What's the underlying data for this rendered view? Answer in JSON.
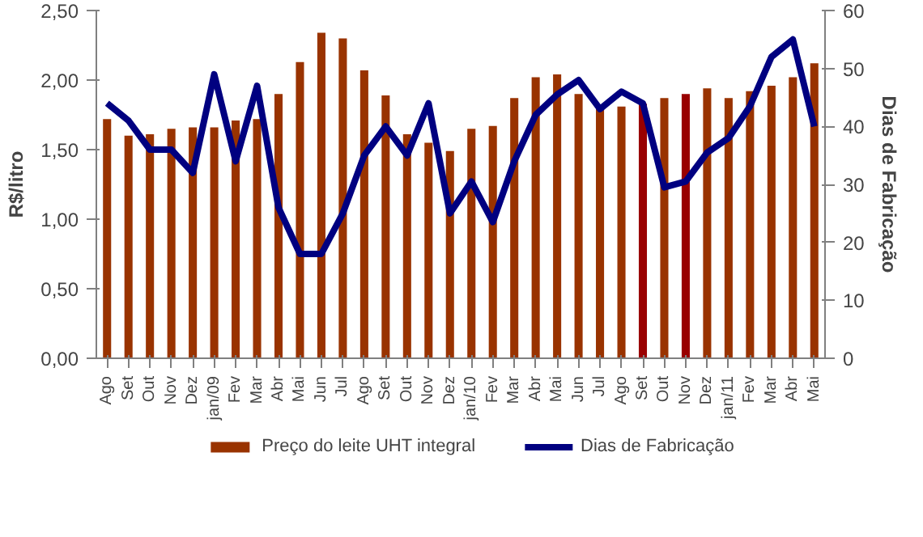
{
  "chart_data": {
    "type": "bar",
    "ylabel": "R$/litro",
    "y2label": "Dias de Fabricação",
    "categories": [
      "Ago",
      "Set",
      "Out",
      "Nov",
      "Dez",
      "jan/09",
      "Fev",
      "Mar",
      "Abr",
      "Mai",
      "Jun",
      "Jul",
      "Ago",
      "Set",
      "Out",
      "Nov",
      "Dez",
      "jan/10",
      "Fev",
      "Mar",
      "Abr",
      "Mai",
      "Jun",
      "Jul",
      "Ago",
      "Set",
      "Out",
      "Nov",
      "Dez",
      "jan/11",
      "Fev",
      "Mar",
      "Abr",
      "Mai"
    ],
    "series": [
      {
        "name": "Preço do leite UHT integral",
        "color": "#993300",
        "colors": [
          null,
          null,
          null,
          null,
          null,
          null,
          null,
          null,
          null,
          null,
          null,
          null,
          null,
          null,
          null,
          null,
          null,
          null,
          null,
          null,
          null,
          null,
          null,
          null,
          null,
          "#990000",
          null,
          "#990000",
          null,
          null,
          null,
          null,
          null,
          null
        ],
        "values": [
          1.72,
          1.6,
          1.61,
          1.65,
          1.66,
          1.66,
          1.71,
          1.72,
          1.9,
          2.13,
          2.34,
          2.3,
          2.07,
          1.89,
          1.61,
          1.55,
          1.49,
          1.65,
          1.67,
          1.87,
          2.02,
          2.04,
          1.9,
          1.8,
          1.81,
          1.83,
          1.87,
          1.9,
          1.94,
          1.87,
          1.92,
          1.96,
          2.02,
          2.12
        ]
      },
      {
        "name": "Dias de Fabricação",
        "type": "line",
        "axis": "y2",
        "color": "#000080",
        "values": [
          44,
          41,
          36,
          36,
          32,
          49,
          34,
          47,
          26,
          18,
          18,
          25,
          35,
          40,
          35,
          44,
          25,
          30.5,
          23.5,
          34,
          42,
          45.5,
          48,
          43,
          46,
          44,
          29.5,
          30.5,
          35.5,
          38,
          43.5,
          52,
          55,
          40
        ]
      }
    ],
    "ylim": [
      0,
      2.5
    ],
    "yticks": [
      {
        "value": 0,
        "label": "0,00"
      },
      {
        "value": 0.5,
        "label": "0,50"
      },
      {
        "value": 1,
        "label": "1,00"
      },
      {
        "value": 1.5,
        "label": "1,50"
      },
      {
        "value": 2,
        "label": "2,00"
      },
      {
        "value": 2.5,
        "label": "2,50"
      }
    ],
    "y2lim": [
      0,
      60
    ],
    "y2ticks": [
      0,
      10,
      20,
      30,
      40,
      50,
      60
    ],
    "grid": false,
    "legend": "bottom",
    "line_style": "solid",
    "marker": "none"
  }
}
